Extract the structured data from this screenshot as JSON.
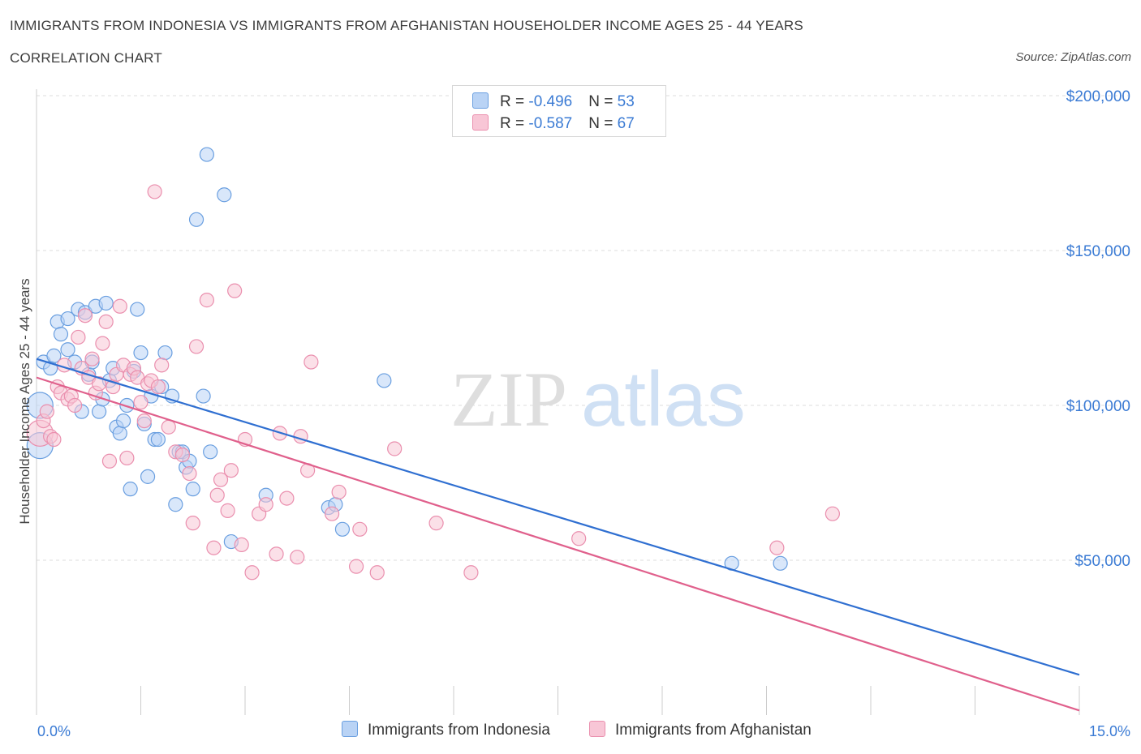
{
  "header": {
    "title": "IMMIGRANTS FROM INDONESIA VS IMMIGRANTS FROM AFGHANISTAN HOUSEHOLDER INCOME AGES 25 - 44 YEARS",
    "subtitle": "CORRELATION CHART",
    "source": "Source: ZipAtlas.com"
  },
  "legend": {
    "rows": [
      {
        "r_label": "R = ",
        "r_value": "-0.496",
        "n_label": "N = ",
        "n_value": "53"
      },
      {
        "r_label": "R = ",
        "r_value": "-0.587",
        "n_label": "N = ",
        "n_value": "67"
      }
    ]
  },
  "watermark": {
    "zip": "ZIP",
    "atlas": "atlas"
  },
  "colors": {
    "indonesia_fill": "#b9d3f5",
    "indonesia_stroke": "#6a9fe0",
    "indonesia_line": "#2f6fd1",
    "afghanistan_fill": "#f8c6d6",
    "afghanistan_stroke": "#ea8fae",
    "afghanistan_line": "#e0608c",
    "tick_text": "#3b7bd4",
    "grid": "#dddddd"
  },
  "chart_data": {
    "type": "scatter",
    "title": "IMMIGRANTS FROM INDONESIA VS IMMIGRANTS FROM AFGHANISTAN HOUSEHOLDER INCOME AGES 25 - 44 YEARS",
    "xlabel": "",
    "ylabel": "Householder Income Ages 25 - 44 years",
    "xlim": [
      0,
      15
    ],
    "ylim": [
      0,
      200000
    ],
    "x_tick_labels": [
      "0.0%",
      "15.0%"
    ],
    "y_ticks": [
      50000,
      100000,
      150000,
      200000
    ],
    "y_tick_labels": [
      "$50,000",
      "$100,000",
      "$150,000",
      "$200,000"
    ],
    "grid": true,
    "legend_position": "bottom",
    "series": [
      {
        "name": "Immigrants from Indonesia",
        "color": "#b9d3f5",
        "trend": {
          "x": [
            0,
            15
          ],
          "y": [
            115000,
            13000
          ]
        },
        "points": [
          {
            "x": 0.05,
            "y": 100000,
            "big": true
          },
          {
            "x": 0.05,
            "y": 87000,
            "big": true
          },
          {
            "x": 0.1,
            "y": 114000
          },
          {
            "x": 0.2,
            "y": 112000
          },
          {
            "x": 0.25,
            "y": 116000
          },
          {
            "x": 0.3,
            "y": 127000
          },
          {
            "x": 0.35,
            "y": 123000
          },
          {
            "x": 0.45,
            "y": 128000
          },
          {
            "x": 0.45,
            "y": 118000
          },
          {
            "x": 0.55,
            "y": 114000
          },
          {
            "x": 0.6,
            "y": 131000
          },
          {
            "x": 0.65,
            "y": 98000
          },
          {
            "x": 0.7,
            "y": 130000
          },
          {
            "x": 0.75,
            "y": 110000
          },
          {
            "x": 0.8,
            "y": 114000
          },
          {
            "x": 0.85,
            "y": 132000
          },
          {
            "x": 0.9,
            "y": 98000
          },
          {
            "x": 0.95,
            "y": 102000
          },
          {
            "x": 1.0,
            "y": 133000
          },
          {
            "x": 1.05,
            "y": 108000
          },
          {
            "x": 1.1,
            "y": 112000
          },
          {
            "x": 1.15,
            "y": 93000
          },
          {
            "x": 1.2,
            "y": 91000
          },
          {
            "x": 1.25,
            "y": 95000
          },
          {
            "x": 1.3,
            "y": 100000
          },
          {
            "x": 1.35,
            "y": 73000
          },
          {
            "x": 1.4,
            "y": 111000
          },
          {
            "x": 1.45,
            "y": 131000
          },
          {
            "x": 1.5,
            "y": 117000
          },
          {
            "x": 1.55,
            "y": 94000
          },
          {
            "x": 1.6,
            "y": 77000
          },
          {
            "x": 1.65,
            "y": 103000
          },
          {
            "x": 1.7,
            "y": 89000
          },
          {
            "x": 1.75,
            "y": 89000
          },
          {
            "x": 1.8,
            "y": 106000
          },
          {
            "x": 1.85,
            "y": 117000
          },
          {
            "x": 1.95,
            "y": 103000
          },
          {
            "x": 2.0,
            "y": 68000
          },
          {
            "x": 2.05,
            "y": 85000
          },
          {
            "x": 2.1,
            "y": 85000
          },
          {
            "x": 2.15,
            "y": 80000
          },
          {
            "x": 2.2,
            "y": 82000
          },
          {
            "x": 2.25,
            "y": 73000
          },
          {
            "x": 2.3,
            "y": 160000
          },
          {
            "x": 2.4,
            "y": 103000
          },
          {
            "x": 2.45,
            "y": 181000
          },
          {
            "x": 2.5,
            "y": 85000
          },
          {
            "x": 2.7,
            "y": 168000
          },
          {
            "x": 2.8,
            "y": 56000
          },
          {
            "x": 3.3,
            "y": 71000
          },
          {
            "x": 4.2,
            "y": 67000
          },
          {
            "x": 4.3,
            "y": 68000
          },
          {
            "x": 4.4,
            "y": 60000
          },
          {
            "x": 5.0,
            "y": 108000
          },
          {
            "x": 10.0,
            "y": 49000
          },
          {
            "x": 10.7,
            "y": 49000
          }
        ]
      },
      {
        "name": "Immigrants from Afghanistan",
        "color": "#f8c6d6",
        "trend": {
          "x": [
            0,
            15
          ],
          "y": [
            109000,
            1500
          ]
        },
        "points": [
          {
            "x": 0.05,
            "y": 91000,
            "big": true
          },
          {
            "x": 0.1,
            "y": 95000
          },
          {
            "x": 0.15,
            "y": 98000
          },
          {
            "x": 0.2,
            "y": 90000
          },
          {
            "x": 0.25,
            "y": 89000
          },
          {
            "x": 0.3,
            "y": 106000
          },
          {
            "x": 0.35,
            "y": 104000
          },
          {
            "x": 0.4,
            "y": 113000
          },
          {
            "x": 0.45,
            "y": 102000
          },
          {
            "x": 0.5,
            "y": 103000
          },
          {
            "x": 0.55,
            "y": 100000
          },
          {
            "x": 0.6,
            "y": 122000
          },
          {
            "x": 0.65,
            "y": 112000
          },
          {
            "x": 0.7,
            "y": 129000
          },
          {
            "x": 0.75,
            "y": 109000
          },
          {
            "x": 0.8,
            "y": 115000
          },
          {
            "x": 0.85,
            "y": 104000
          },
          {
            "x": 0.9,
            "y": 107000
          },
          {
            "x": 0.95,
            "y": 120000
          },
          {
            "x": 1.0,
            "y": 127000
          },
          {
            "x": 1.05,
            "y": 82000
          },
          {
            "x": 1.1,
            "y": 106000
          },
          {
            "x": 1.15,
            "y": 110000
          },
          {
            "x": 1.2,
            "y": 132000
          },
          {
            "x": 1.25,
            "y": 113000
          },
          {
            "x": 1.3,
            "y": 83000
          },
          {
            "x": 1.35,
            "y": 110000
          },
          {
            "x": 1.4,
            "y": 112000
          },
          {
            "x": 1.45,
            "y": 109000
          },
          {
            "x": 1.5,
            "y": 101000
          },
          {
            "x": 1.55,
            "y": 95000
          },
          {
            "x": 1.6,
            "y": 107000
          },
          {
            "x": 1.65,
            "y": 108000
          },
          {
            "x": 1.7,
            "y": 169000
          },
          {
            "x": 1.75,
            "y": 106000
          },
          {
            "x": 1.8,
            "y": 113000
          },
          {
            "x": 1.9,
            "y": 93000
          },
          {
            "x": 2.0,
            "y": 85000
          },
          {
            "x": 2.1,
            "y": 84000
          },
          {
            "x": 2.2,
            "y": 78000
          },
          {
            "x": 2.25,
            "y": 62000
          },
          {
            "x": 2.3,
            "y": 119000
          },
          {
            "x": 2.45,
            "y": 134000
          },
          {
            "x": 2.55,
            "y": 54000
          },
          {
            "x": 2.6,
            "y": 71000
          },
          {
            "x": 2.65,
            "y": 76000
          },
          {
            "x": 2.75,
            "y": 66000
          },
          {
            "x": 2.8,
            "y": 79000
          },
          {
            "x": 2.85,
            "y": 137000
          },
          {
            "x": 2.95,
            "y": 55000
          },
          {
            "x": 3.0,
            "y": 89000
          },
          {
            "x": 3.1,
            "y": 46000
          },
          {
            "x": 3.2,
            "y": 65000
          },
          {
            "x": 3.3,
            "y": 68000
          },
          {
            "x": 3.45,
            "y": 52000
          },
          {
            "x": 3.5,
            "y": 91000
          },
          {
            "x": 3.6,
            "y": 70000
          },
          {
            "x": 3.75,
            "y": 51000
          },
          {
            "x": 3.8,
            "y": 90000
          },
          {
            "x": 3.9,
            "y": 79000
          },
          {
            "x": 3.95,
            "y": 114000
          },
          {
            "x": 4.25,
            "y": 65000
          },
          {
            "x": 4.35,
            "y": 72000
          },
          {
            "x": 4.6,
            "y": 48000
          },
          {
            "x": 4.65,
            "y": 60000
          },
          {
            "x": 4.9,
            "y": 46000
          },
          {
            "x": 5.15,
            "y": 86000
          },
          {
            "x": 5.75,
            "y": 62000
          },
          {
            "x": 6.25,
            "y": 46000
          },
          {
            "x": 7.8,
            "y": 57000
          },
          {
            "x": 10.65,
            "y": 54000
          },
          {
            "x": 11.45,
            "y": 65000
          }
        ]
      }
    ]
  }
}
